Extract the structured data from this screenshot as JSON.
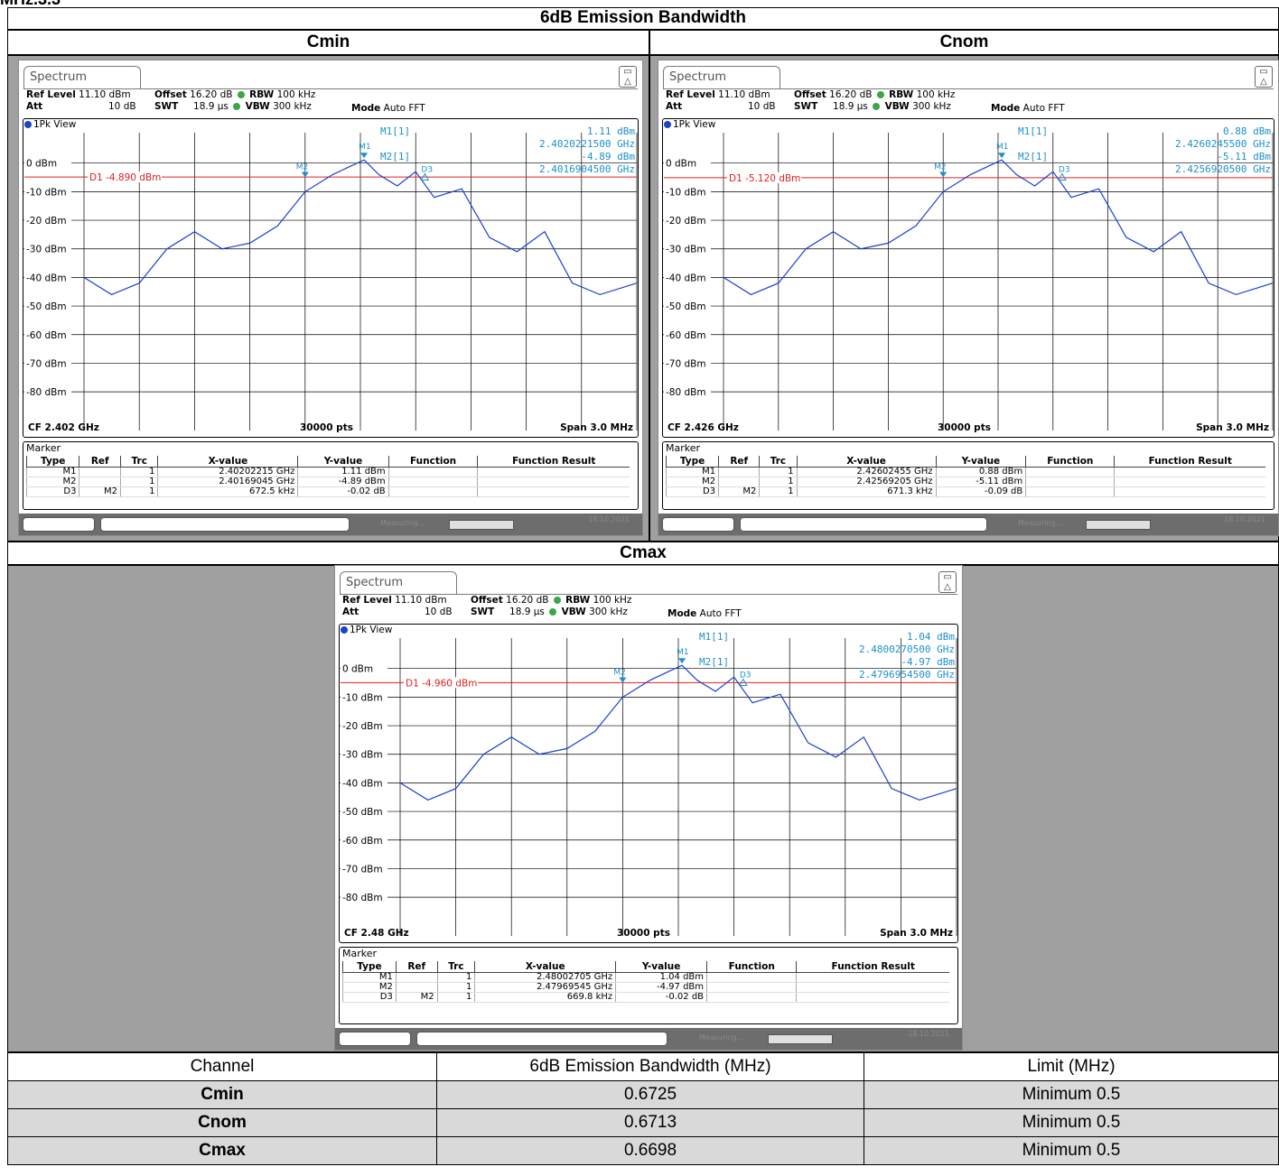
{
  "cut_title": "MHz.3.3",
  "main_header": "6dB Emission Bandwidth",
  "panels": {
    "cmin": {
      "label": "Cmin",
      "tab": "Spectrum",
      "ref_level_label": "Ref Level",
      "ref_level": "11.10 dBm",
      "att_label": "Att",
      "att": "10 dB",
      "offset_label": "Offset",
      "offset": "16.20 dB",
      "swt_label": "SWT",
      "swt": "18.9 µs",
      "rbw_label": "RBW",
      "rbw": "100 kHz",
      "vbw_label": "VBW",
      "vbw": "300 kHz",
      "mode_label": "Mode",
      "mode": "Auto FFT",
      "view": "1Pk View",
      "d1_line": "D1 -4.890 dBm",
      "m1_label": "M1[1]",
      "m1_level": "1.11 dBm",
      "m1_freq": "2.4020221500 GHz",
      "m2_label": "M2[1]",
      "m2_level": "-4.89 dBm",
      "m2_freq": "2.4016904500 GHz",
      "cf": "CF 2.402 GHz",
      "pts": "30000 pts",
      "span": "Span 3.0 MHz",
      "marker_title": "Marker",
      "marker_rows": [
        [
          "M1",
          "",
          "1",
          "2.40202215 GHz",
          "1.11 dBm",
          "",
          ""
        ],
        [
          "M2",
          "",
          "1",
          "2.40169045 GHz",
          "-4.89 dBm",
          "",
          ""
        ],
        [
          "D3",
          "M2",
          "1",
          "672.5 kHz",
          "-0.02 dB",
          "",
          ""
        ]
      ],
      "status_text": "Measuring...",
      "date": "18.10.2021"
    },
    "cnom": {
      "label": "Cnom",
      "tab": "Spectrum",
      "ref_level_label": "Ref Level",
      "ref_level": "11.10 dBm",
      "att_label": "Att",
      "att": "10 dB",
      "offset_label": "Offset",
      "offset": "16.20 dB",
      "swt_label": "SWT",
      "swt": "18.9 µs",
      "rbw_label": "RBW",
      "rbw": "100 kHz",
      "vbw_label": "VBW",
      "vbw": "300 kHz",
      "mode_label": "Mode",
      "mode": "Auto FFT",
      "view": "1Pk View",
      "d1_line": "D1 -5.120 dBm",
      "m1_label": "M1[1]",
      "m1_level": "0.88 dBm",
      "m1_freq": "2.4260245500 GHz",
      "m2_label": "M2[1]",
      "m2_level": "-5.11 dBm",
      "m2_freq": "2.4256920500 GHz",
      "cf": "CF 2.426 GHz",
      "pts": "30000 pts",
      "span": "Span 3.0 MHz",
      "marker_title": "Marker",
      "marker_rows": [
        [
          "M1",
          "",
          "1",
          "2.42602455 GHz",
          "0.88 dBm",
          "",
          ""
        ],
        [
          "M2",
          "",
          "1",
          "2.42569205 GHz",
          "-5.11 dBm",
          "",
          ""
        ],
        [
          "D3",
          "M2",
          "1",
          "671.3 kHz",
          "-0.09 dB",
          "",
          ""
        ]
      ],
      "status_text": "Measuring...",
      "date": "18.10.2021"
    },
    "cmax": {
      "label": "Cmax",
      "tab": "Spectrum",
      "ref_level_label": "Ref Level",
      "ref_level": "11.10 dBm",
      "att_label": "Att",
      "att": "10 dB",
      "offset_label": "Offset",
      "offset": "16.20 dB",
      "swt_label": "SWT",
      "swt": "18.9 µs",
      "rbw_label": "RBW",
      "rbw": "100 kHz",
      "vbw_label": "VBW",
      "vbw": "300 kHz",
      "mode_label": "Mode",
      "mode": "Auto FFT",
      "view": "1Pk View",
      "d1_line": "D1 -4.960 dBm",
      "m1_label": "M1[1]",
      "m1_level": "1.04 dBm",
      "m1_freq": "2.4800270500 GHz",
      "m2_label": "M2[1]",
      "m2_level": "-4.97 dBm",
      "m2_freq": "2.4796954500 GHz",
      "cf": "CF 2.48 GHz",
      "pts": "30000 pts",
      "span": "Span 3.0 MHz",
      "marker_title": "Marker",
      "marker_rows": [
        [
          "M1",
          "",
          "1",
          "2.48002705 GHz",
          "1.04 dBm",
          "",
          ""
        ],
        [
          "M2",
          "",
          "1",
          "2.47969545 GHz",
          "-4.97 dBm",
          "",
          ""
        ],
        [
          "D3",
          "M2",
          "1",
          "669.8 kHz",
          "-0.02 dB",
          "",
          ""
        ]
      ],
      "status_text": "Measuring...",
      "date": "18.10.2021"
    }
  },
  "marker_columns": [
    "Type",
    "Ref",
    "Trc",
    "X-value",
    "Y-value",
    "Function",
    "Function Result"
  ],
  "y_axis_labels": [
    "0 dBm",
    "-10 dBm",
    "-20 dBm",
    "-30 dBm",
    "-40 dBm",
    "-50 dBm",
    "-60 dBm",
    "-70 dBm",
    "-80 dBm"
  ],
  "colors": {
    "trace": "#1a3fd0",
    "marker": "#1e90c8",
    "display_line": "#e02020",
    "status_bar": "#6d6d6d",
    "table_header": "#d9d9d9",
    "panel_background": "#a0a0a0"
  },
  "results": {
    "headers": [
      "Channel",
      "6dB Emission Bandwidth (MHz)",
      "Limit (MHz)"
    ],
    "rows": [
      [
        "Cmin",
        "0.6725",
        "Minimum 0.5"
      ],
      [
        "Cnom",
        "0.6713",
        "Minimum 0.5"
      ],
      [
        "Cmax",
        "0.6698",
        "Minimum 0.5"
      ]
    ]
  },
  "chart_data": {
    "type": "line",
    "x_unit": "MHz offset from CF",
    "y_unit": "dBm",
    "ylim": [
      -90,
      10
    ],
    "xlim": [
      -1.5,
      1.5
    ],
    "series": [
      {
        "x": [
          -1.5,
          -1.35,
          -1.2,
          -1.05,
          -0.9,
          -0.75,
          -0.6,
          -0.45,
          -0.3,
          -0.15,
          -0.05,
          0.02,
          0.1,
          0.2,
          0.3,
          0.4,
          0.55,
          0.7,
          0.85,
          1.0,
          1.15,
          1.3,
          1.5
        ],
        "y": [
          -40,
          -46,
          -42,
          -30,
          -24,
          -30,
          -28,
          -22,
          -10,
          -4,
          -1,
          1.1,
          -4,
          -8,
          -3,
          -12,
          -9,
          -26,
          -31,
          -24,
          -42,
          -46,
          -42
        ]
      }
    ]
  }
}
